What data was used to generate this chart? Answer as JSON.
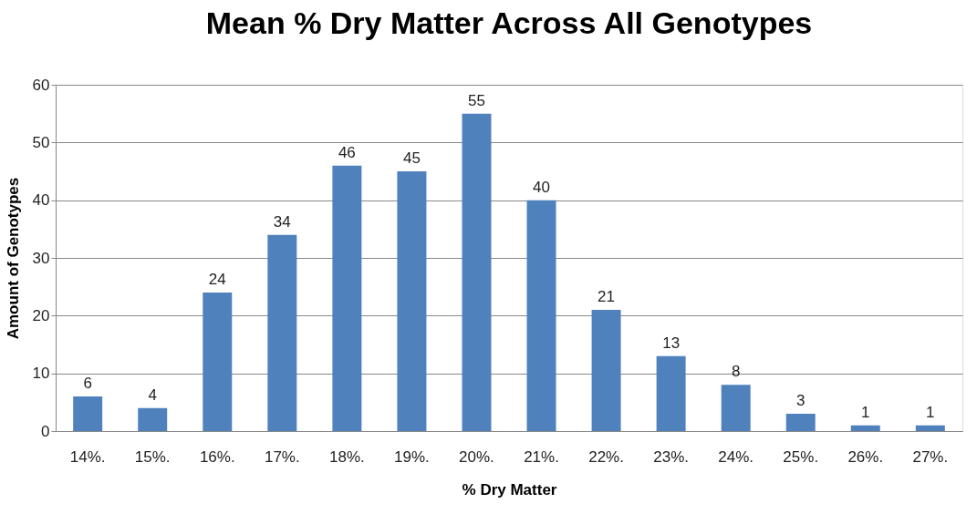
{
  "chart_data": {
    "type": "bar",
    "title": "Mean % Dry Matter Across All Genotypes",
    "xlabel": "% Dry Matter",
    "ylabel": "Amount of Genotypes",
    "categories": [
      "14%.",
      "15%.",
      "16%.",
      "17%.",
      "18%.",
      "19%.",
      "20%.",
      "21%.",
      "22%.",
      "23%.",
      "24%.",
      "25%.",
      "26%.",
      "27%."
    ],
    "values": [
      6,
      4,
      24,
      34,
      46,
      45,
      55,
      40,
      21,
      13,
      8,
      3,
      1,
      1
    ],
    "color": "#4f81bd",
    "ylim": [
      0,
      60
    ],
    "yticks": [
      0,
      10,
      20,
      30,
      40,
      50,
      60
    ],
    "grid": "y",
    "data_labels": true
  }
}
